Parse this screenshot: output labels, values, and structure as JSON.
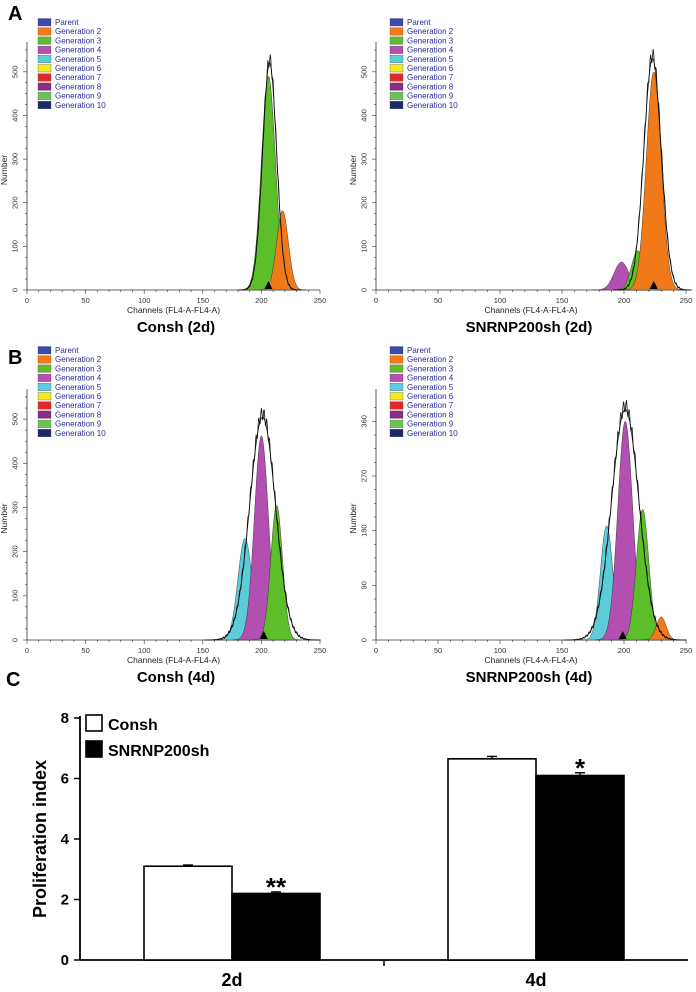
{
  "panel_labels": {
    "a": "A",
    "b": "B",
    "c": "C"
  },
  "legend": {
    "entries": [
      "Parent",
      "Generation 2",
      "Generation 3",
      "Generation 4",
      "Generation 5",
      "Generation 6",
      "Generation 7",
      "Generation 8",
      "Generation 9",
      "Generation 10"
    ],
    "colors": [
      "#3a4ab0",
      "#f07a1a",
      "#5cbf2a",
      "#b24fb0",
      "#5ccdd8",
      "#f2e81c",
      "#e02a2a",
      "#8a2a8a",
      "#6cc45a",
      "#1a2a6a"
    ]
  },
  "axis_text": {
    "xlabel": "Channels (FL4-A-FL4-A)",
    "ylabel": "Number"
  },
  "histograms": [
    {
      "title": "Consh (2d)",
      "xticks": [
        0,
        50,
        100,
        150,
        200,
        250
      ],
      "yticks": [
        0,
        100,
        200,
        300,
        400,
        500
      ],
      "ymax": 550,
      "marker_x": 206,
      "outline": {
        "mu": 207,
        "sd": 6,
        "amp": 528
      },
      "peaks": [
        {
          "generation": "Generation 3",
          "color": "#5cbf2a",
          "mu": 206,
          "sd": 6,
          "amp": 490
        },
        {
          "generation": "Generation 2",
          "color": "#f07a1a",
          "mu": 218,
          "sd": 5,
          "amp": 182
        }
      ]
    },
    {
      "title": "SNRNP200sh (2d)",
      "xticks": [
        0,
        50,
        100,
        150,
        200,
        250
      ],
      "yticks": [
        0,
        100,
        200,
        300,
        400,
        500
      ],
      "ymax": 550,
      "marker_x": 224,
      "outline": {
        "mu": 223,
        "sd": 7,
        "amp": 538
      },
      "peaks": [
        {
          "generation": "Generation 4",
          "color": "#b24fb0",
          "mu": 198,
          "sd": 6,
          "amp": 64
        },
        {
          "generation": "Generation 3",
          "color": "#5cbf2a",
          "mu": 211,
          "sd": 5,
          "amp": 90
        },
        {
          "generation": "Generation 2",
          "color": "#f07a1a",
          "mu": 224,
          "sd": 6,
          "amp": 500
        }
      ]
    },
    {
      "title": "Consh (4d)",
      "xticks": [
        0,
        50,
        100,
        150,
        200,
        250
      ],
      "yticks": [
        0,
        100,
        200,
        300,
        400,
        500
      ],
      "ymax": 550,
      "marker_x": 202,
      "outline": {
        "mu": 201,
        "sd": 11,
        "amp": 512
      },
      "peaks": [
        {
          "generation": "Generation 5",
          "color": "#5ccdd8",
          "mu": 186,
          "sd": 6,
          "amp": 230
        },
        {
          "generation": "Generation 4",
          "color": "#b24fb0",
          "mu": 200,
          "sd": 6,
          "amp": 462
        },
        {
          "generation": "Generation 3",
          "color": "#5cbf2a",
          "mu": 213,
          "sd": 5,
          "amp": 305
        }
      ]
    },
    {
      "title": "SNRNP200sh (4d)",
      "xticks": [
        0,
        50,
        100,
        150,
        200,
        250
      ],
      "yticks": [
        0,
        90,
        180,
        270,
        360
      ],
      "ymax": 400,
      "marker_x": 199,
      "outline": {
        "mu": 201,
        "sd": 11,
        "amp": 385
      },
      "peaks": [
        {
          "generation": "Generation 5",
          "color": "#5ccdd8",
          "mu": 186,
          "sd": 5,
          "amp": 188
        },
        {
          "generation": "Generation 4",
          "color": "#b24fb0",
          "mu": 201,
          "sd": 6,
          "amp": 360
        },
        {
          "generation": "Generation 3",
          "color": "#5cbf2a",
          "mu": 215,
          "sd": 5,
          "amp": 215
        },
        {
          "generation": "Generation 2",
          "color": "#f07a1a",
          "mu": 230,
          "sd": 4,
          "amp": 38
        }
      ]
    }
  ],
  "chart_data": {
    "type": "bar",
    "categories": [
      "2d",
      "4d"
    ],
    "series": [
      {
        "name": "Consh",
        "values": [
          3.1,
          6.65
        ],
        "errors": [
          0.04,
          0.08
        ]
      },
      {
        "name": "SNRNP200sh",
        "values": [
          2.2,
          6.1
        ],
        "errors": [
          0.05,
          0.09
        ]
      }
    ],
    "annotations": [
      "**",
      "*"
    ],
    "ylabel": "Proliferation index",
    "xlabel": "",
    "ylim": [
      0,
      8
    ],
    "yticks": [
      0,
      2,
      4,
      6,
      8
    ],
    "legend_position": "top-left",
    "title": ""
  }
}
